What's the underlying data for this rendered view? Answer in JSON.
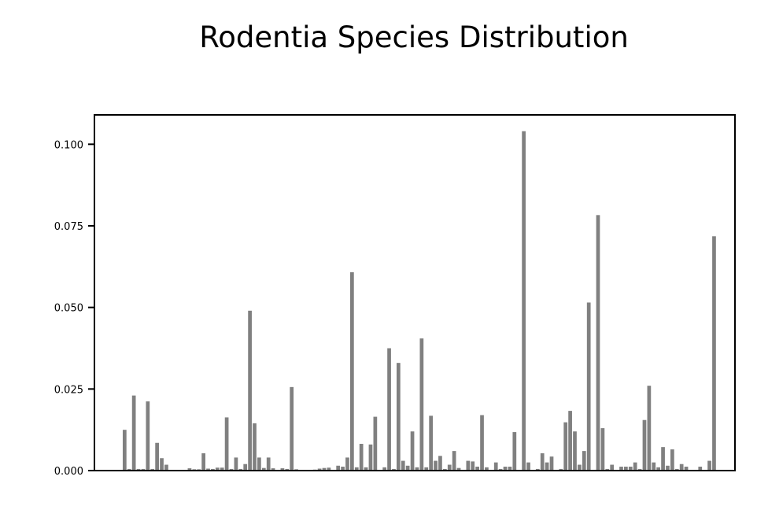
{
  "colors": {
    "bar": "#808080",
    "axis": "#000000",
    "background": "#ffffff"
  },
  "chart_data": {
    "type": "bar",
    "title": "Rodentia Species Distribution",
    "xlabel": "",
    "ylabel": "",
    "ylim": [
      0,
      0.109
    ],
    "xlim": [
      -6.5,
      131.5
    ],
    "yticks": [
      {
        "value": 0.0,
        "label": "0.000"
      },
      {
        "value": 0.025,
        "label": "0.025"
      },
      {
        "value": 0.05,
        "label": "0.050"
      },
      {
        "value": 0.075,
        "label": "0.075"
      },
      {
        "value": 0.1,
        "label": "0.100"
      }
    ],
    "grid": false,
    "legend": "none",
    "values": [
      0.0125,
      0.0005,
      0.023,
      0.0005,
      0.0005,
      0.0212,
      0.0005,
      0.0085,
      0.0038,
      0.0018,
      0.0002,
      0.0002,
      0.0002,
      0.0002,
      0.0007,
      0.0004,
      0.0004,
      0.0053,
      0.0006,
      0.0005,
      0.0009,
      0.0009,
      0.0163,
      0.0005,
      0.004,
      0.0005,
      0.002,
      0.049,
      0.0145,
      0.004,
      0.0008,
      0.004,
      0.0007,
      0.0002,
      0.0007,
      0.0005,
      0.0256,
      0.0004,
      0.0002,
      0.0002,
      0.0002,
      0.0003,
      0.0006,
      0.0008,
      0.0009,
      0.0002,
      0.0015,
      0.0012,
      0.004,
      0.0608,
      0.001,
      0.0082,
      0.001,
      0.008,
      0.0165,
      0.0002,
      0.001,
      0.0375,
      0.0005,
      0.033,
      0.003,
      0.0015,
      0.012,
      0.001,
      0.0405,
      0.001,
      0.0168,
      0.003,
      0.0045,
      0.0005,
      0.0018,
      0.006,
      0.0008,
      0.0002,
      0.003,
      0.0028,
      0.0012,
      0.017,
      0.001,
      0.0002,
      0.0025,
      0.0005,
      0.0012,
      0.0012,
      0.0118,
      0.0002,
      0.104,
      0.0025,
      0.0002,
      0.0005,
      0.0053,
      0.0025,
      0.0043,
      0.0002,
      0.0005,
      0.0148,
      0.0183,
      0.012,
      0.0018,
      0.006,
      0.0515,
      0.0002,
      0.0783,
      0.013,
      0.0005,
      0.0018,
      0.0002,
      0.0012,
      0.0012,
      0.0012,
      0.0025,
      0.0005,
      0.0155,
      0.026,
      0.0025,
      0.001,
      0.0072,
      0.0015,
      0.0065,
      0.0005,
      0.002,
      0.0012,
      0.0002,
      0.0002,
      0.0012,
      0.0002,
      0.003,
      0.0718
    ]
  }
}
